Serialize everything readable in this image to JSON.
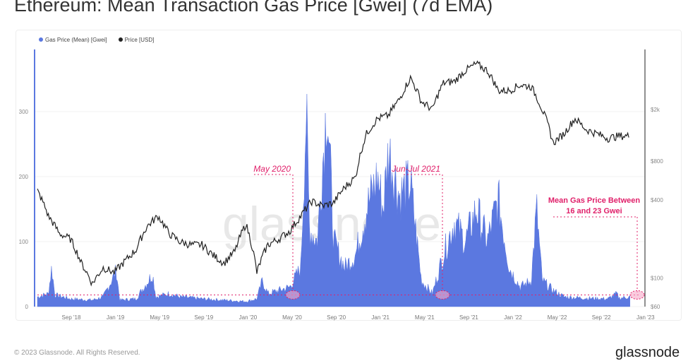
{
  "chart_data": {
    "type": "area+line",
    "title": "Ethereum: Mean Transaction Gas Price [Gwei] (7d EMA)",
    "legend": [
      {
        "name": "Gas Price (Mean) [Gwei]",
        "color": "#5b78e0"
      },
      {
        "name": "Price [USD]",
        "color": "#222222"
      }
    ],
    "x_ticks": [
      "Sep '18",
      "Jan '19",
      "May '19",
      "Sep '19",
      "Jan '20",
      "May '20",
      "Sep '20",
      "Jan '21",
      "May '21",
      "Sep '21",
      "Jan '22",
      "May '22",
      "Sep '22",
      "Jan '23"
    ],
    "y_left": {
      "ticks": [
        0,
        100,
        200,
        300
      ],
      "range": [
        0,
        380
      ]
    },
    "y_right": {
      "ticks": [
        "$60",
        "$100",
        "$400",
        "$800",
        "$2k"
      ],
      "tick_values": [
        60,
        100,
        400,
        800,
        2000
      ],
      "scale": "log"
    },
    "x_start": "Jul 2018",
    "gas_series": [
      [
        0,
        15
      ],
      [
        1,
        20
      ],
      [
        1.3,
        60
      ],
      [
        1.6,
        18
      ],
      [
        3,
        12
      ],
      [
        5,
        10
      ],
      [
        6,
        15
      ],
      [
        7.2,
        55
      ],
      [
        7.5,
        10
      ],
      [
        9,
        12
      ],
      [
        10.5,
        50
      ],
      [
        10.8,
        15
      ],
      [
        12,
        20
      ],
      [
        13,
        15
      ],
      [
        15,
        12
      ],
      [
        17,
        10
      ],
      [
        19,
        8
      ],
      [
        20,
        12
      ],
      [
        20.5,
        40
      ],
      [
        21,
        20
      ],
      [
        22,
        25
      ],
      [
        23,
        30
      ],
      [
        24,
        60
      ],
      [
        24.5,
        300
      ],
      [
        24.8,
        120
      ],
      [
        25.5,
        100
      ],
      [
        26.4,
        320
      ],
      [
        27,
        100
      ],
      [
        28,
        60
      ],
      [
        29,
        80
      ],
      [
        30,
        150
      ],
      [
        31,
        200
      ],
      [
        31.5,
        150
      ],
      [
        32,
        240
      ],
      [
        33,
        170
      ],
      [
        34,
        190
      ],
      [
        35,
        40
      ],
      [
        36,
        20
      ],
      [
        37,
        80
      ],
      [
        38,
        130
      ],
      [
        39,
        100
      ],
      [
        40,
        150
      ],
      [
        41,
        100
      ],
      [
        42,
        165
      ],
      [
        43,
        60
      ],
      [
        44,
        30
      ],
      [
        45,
        40
      ],
      [
        45.5,
        150
      ],
      [
        46,
        40
      ],
      [
        47,
        25
      ],
      [
        48,
        15
      ],
      [
        50,
        13
      ],
      [
        52,
        12
      ],
      [
        52.8,
        20
      ],
      [
        53,
        13
      ],
      [
        54,
        15
      ]
    ],
    "price_series": [
      [
        0,
        470
      ],
      [
        1,
        300
      ],
      [
        2,
        220
      ],
      [
        3,
        200
      ],
      [
        4,
        130
      ],
      [
        5,
        90
      ],
      [
        6,
        120
      ],
      [
        7,
        110
      ],
      [
        8,
        135
      ],
      [
        9,
        165
      ],
      [
        10,
        250
      ],
      [
        11,
        300
      ],
      [
        12,
        220
      ],
      [
        13,
        190
      ],
      [
        14,
        180
      ],
      [
        15,
        180
      ],
      [
        16,
        150
      ],
      [
        17,
        130
      ],
      [
        18,
        160
      ],
      [
        19,
        260
      ],
      [
        20,
        110
      ],
      [
        21,
        180
      ],
      [
        22,
        200
      ],
      [
        23,
        230
      ],
      [
        24,
        300
      ],
      [
        25,
        390
      ],
      [
        26,
        360
      ],
      [
        27,
        380
      ],
      [
        28,
        500
      ],
      [
        29,
        600
      ],
      [
        30,
        1300
      ],
      [
        31,
        1700
      ],
      [
        32,
        1800
      ],
      [
        33,
        2400
      ],
      [
        34,
        3500
      ],
      [
        35,
        2300
      ],
      [
        36,
        2000
      ],
      [
        37,
        3200
      ],
      [
        38,
        3300
      ],
      [
        39,
        4000
      ],
      [
        40,
        4500
      ],
      [
        41,
        4000
      ],
      [
        42,
        2800
      ],
      [
        43,
        2800
      ],
      [
        44,
        3100
      ],
      [
        45,
        3000
      ],
      [
        46,
        2000
      ],
      [
        47,
        1100
      ],
      [
        48,
        1300
      ],
      [
        49,
        1700
      ],
      [
        50,
        1400
      ],
      [
        51,
        1300
      ],
      [
        52,
        1200
      ],
      [
        53,
        1250
      ],
      [
        54,
        1250
      ]
    ],
    "annotations": [
      "May 2020",
      "Jun-Jul 2021",
      "Mean Gas Price Between",
      "16 and 23 Gwei"
    ],
    "reference_line_gwei": 18,
    "watermark": "glassnode"
  },
  "footer": "© 2023 Glassnode. All Rights Reserved.",
  "logo": "glassnode"
}
